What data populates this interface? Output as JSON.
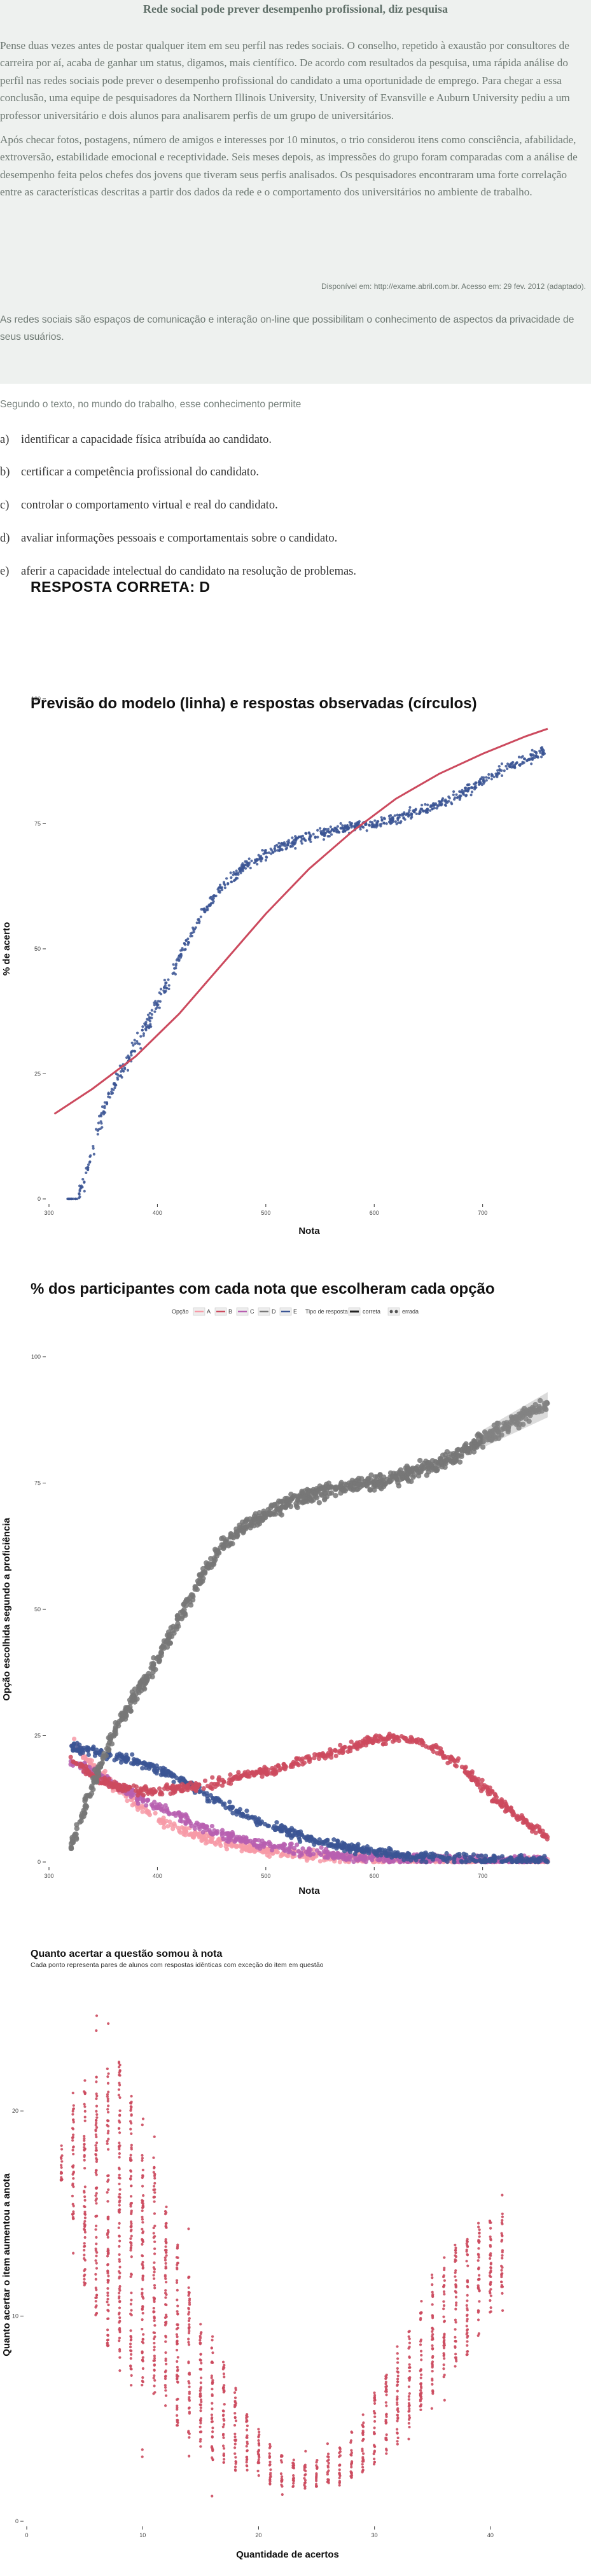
{
  "text_box": {
    "title": "Rede social pode prever desempenho profissional, diz pesquisa",
    "paragraph1": "Pense duas vezes antes de postar qualquer item em seu perfil nas redes sociais. O conselho, repetido à exaustão por consultores de carreira por aí, acaba de ganhar um status, digamos, mais científico. De acordo com resultados da pesquisa, uma rápida análise do perfil nas redes sociais pode prever o desempenho profissional do candidato a uma oportunidade de emprego. Para chegar a essa conclusão, uma equipe de pesquisadores da Northern Illinois University, University of Evansville e Auburn University pediu a um professor universitário e dois alunos para analisarem perfis de um grupo de universitários.",
    "paragraph2": "Após checar fotos, postagens, número de amigos e interesses por 10 minutos, o trio considerou itens como consciência, afabilidade, extroversão, estabilidade emocional e receptividade. Seis meses depois, as impressões do grupo foram comparadas com a análise de desempenho feita pelos chefes dos jovens que tiveram seus perfis analisados. Os pesquisadores encontraram uma forte correlação entre as características descritas a partir dos dados da rede e o comportamento dos universitários no ambiente de trabalho.",
    "source": "Disponível em: http://exame.abril.com.br. Acesso em: 29 fev. 2012 (adaptado).",
    "paragraph3": "As redes sociais são espaços de comunicação e interação on-line que possibilitam o conhecimento de aspectos da privacidade de seus usuários."
  },
  "question": {
    "stem": "Segundo o texto, no mundo do trabalho, esse conhecimento permite",
    "options": [
      {
        "letter": "a)",
        "text": "identificar a capacidade física atribuída ao candidato."
      },
      {
        "letter": "b)",
        "text": "certificar a competência profissional do candidato."
      },
      {
        "letter": "c)",
        "text": "controlar o comportamento virtual e real do candidato."
      },
      {
        "letter": "d)",
        "text": "avaliar informações pessoais e comportamentais sobre o candidato."
      },
      {
        "letter": "e)",
        "text": "aferir a capacidade intelectual do candidato na resolução de problemas."
      }
    ],
    "answer": "RESPOSTA CORRETA: D"
  },
  "colors": {
    "text_box_bg": "#eef1ef",
    "observed": "#3b5594",
    "model": "#cc4a5e",
    "opt_A": "#f79aa7",
    "opt_B": "#cc4a5e",
    "opt_C": "#b75fb0",
    "opt_D": "#777777",
    "opt_E": "#3b5594",
    "diff": "#cc4a5e"
  },
  "chart_data": [
    {
      "type": "scatter",
      "title": "Previsão do modelo (linha) e respostas observadas (círculos)",
      "xlabel": "Nota",
      "ylabel": "% de acerto",
      "xlim": [
        300,
        780
      ],
      "ylim": [
        0,
        100
      ],
      "x_ticks": [
        "300",
        "400",
        "500",
        "600",
        "700"
      ],
      "y_ticks": [
        "0",
        "25",
        "50",
        "75",
        "100"
      ],
      "grid": false,
      "series": [
        {
          "kind": "line",
          "x": [
            305,
            340,
            380,
            420,
            460,
            500,
            540,
            580,
            620,
            660,
            700,
            740,
            760
          ],
          "y": [
            17,
            22,
            28.5,
            37,
            47,
            57,
            66,
            73.5,
            80,
            85,
            89,
            92.5,
            94
          ]
        },
        {
          "kind": "points",
          "x": [
            316,
            325,
            332,
            338,
            345,
            355,
            365,
            380,
            400,
            420,
            440,
            460,
            480,
            500,
            520,
            540,
            560,
            580,
            600,
            620,
            640,
            660,
            680,
            700,
            720,
            740,
            758
          ],
          "y": [
            0,
            0,
            3,
            8,
            14,
            20,
            25,
            30.5,
            39,
            48,
            56.5,
            62.5,
            66.5,
            69,
            71,
            72.5,
            73.5,
            74.5,
            75,
            76,
            77.5,
            79,
            81,
            83.5,
            86,
            88,
            89.5
          ]
        }
      ]
    },
    {
      "type": "scatter",
      "title": "% dos participantes com cada nota que escolheram cada opção",
      "xlabel": "Nota",
      "ylabel": "Opção escolhida segundo a proficiência",
      "xlim": [
        300,
        780
      ],
      "ylim": [
        0,
        100
      ],
      "x_ticks": [
        "300",
        "400",
        "500",
        "600",
        "700"
      ],
      "y_ticks": [
        "0",
        "25",
        "50",
        "75",
        "100"
      ],
      "grid": false,
      "legend": {
        "placement": "top",
        "options_label": "Opção",
        "type_label": "Tipo de resposta",
        "type_items": [
          "correta",
          "errada"
        ]
      },
      "x": [
        320,
        340,
        360,
        380,
        400,
        420,
        440,
        460,
        480,
        500,
        520,
        540,
        560,
        580,
        600,
        620,
        640,
        660,
        680,
        700,
        720,
        740,
        760
      ],
      "series": [
        {
          "name": "A",
          "values": [
            24,
            19,
            15,
            11.5,
            8.5,
            6.5,
            5,
            3.8,
            2.8,
            2.2,
            1.7,
            1.3,
            1,
            0.7,
            0.5,
            0.4,
            0.3,
            0.2,
            0.2,
            0.1,
            0.1,
            0.1,
            0
          ]
        },
        {
          "name": "B",
          "values": [
            21,
            17,
            15,
            14,
            14,
            14.5,
            15,
            16,
            17,
            18,
            19,
            20.5,
            21.5,
            23,
            24,
            24.5,
            24,
            22,
            19,
            15,
            11,
            8,
            5
          ]
        },
        {
          "name": "C",
          "values": [
            20,
            18,
            15.5,
            13,
            11,
            9,
            7,
            5.5,
            4.3,
            3.3,
            2.6,
            2,
            1.5,
            1.1,
            0.8,
            0.6,
            0.5,
            0.4,
            0.3,
            0.3,
            0.2,
            0.2,
            0.2
          ]
        },
        {
          "name": "D",
          "values": [
            3,
            15,
            26,
            33,
            40,
            48,
            56,
            62.5,
            66.5,
            69,
            71,
            72.5,
            73.5,
            74.5,
            75,
            76,
            77.5,
            79,
            81,
            83.5,
            86,
            88.5,
            90.5
          ]
        },
        {
          "name": "E",
          "values": [
            23,
            22,
            21,
            20,
            18.5,
            16.5,
            14,
            11.5,
            9.3,
            7.5,
            6,
            4.7,
            3.6,
            2.7,
            2,
            1.5,
            1.1,
            0.8,
            0.6,
            0.4,
            0.3,
            0.2,
            0.1
          ]
        }
      ]
    },
    {
      "type": "scatter",
      "title": "Quanto acertar a questão somou à nota",
      "subtitle": "Cada ponto representa pares de alunos com respostas idênticas com exceção do item em questão",
      "xlabel": "Quantidade de acertos",
      "ylabel": "Quanto acertar o item aumentou a anota",
      "xlim": [
        0,
        45
      ],
      "ylim": [
        0,
        25
      ],
      "x_ticks": [
        "0",
        "10",
        "20",
        "30",
        "40"
      ],
      "y_ticks": [
        "0",
        "10",
        "20"
      ],
      "grid": false,
      "x": [
        3,
        4,
        5,
        6,
        7,
        8,
        9,
        10,
        11,
        12,
        13,
        14,
        15,
        16,
        17,
        18,
        19,
        20,
        21,
        22,
        23,
        24,
        25,
        26,
        27,
        28,
        29,
        30,
        31,
        32,
        33,
        34,
        35,
        36,
        37,
        38,
        39,
        40,
        41
      ],
      "y_center": [
        17.5,
        17.5,
        16.5,
        16,
        15.5,
        15,
        14,
        13,
        12,
        10.5,
        9,
        8,
        7,
        6,
        5.3,
        4.5,
        3.8,
        3.3,
        2.8,
        2.5,
        2.3,
        2.3,
        2.3,
        2.5,
        2.8,
        3.3,
        3.8,
        4.5,
        5.2,
        6,
        7,
        8,
        9,
        10,
        10.5,
        11,
        11.8,
        12.3,
        13
      ],
      "y_spread": [
        1,
        3,
        5,
        6,
        7,
        7.5,
        7,
        6.5,
        6,
        5,
        4.5,
        4,
        3.5,
        3,
        2.5,
        2,
        1.5,
        1.2,
        1,
        0.8,
        0.7,
        0.7,
        0.7,
        0.8,
        1,
        1.2,
        1.5,
        1.8,
        2,
        2.3,
        2.5,
        2.8,
        3,
        3,
        3,
        3,
        2.8,
        2.5,
        2
      ]
    }
  ]
}
